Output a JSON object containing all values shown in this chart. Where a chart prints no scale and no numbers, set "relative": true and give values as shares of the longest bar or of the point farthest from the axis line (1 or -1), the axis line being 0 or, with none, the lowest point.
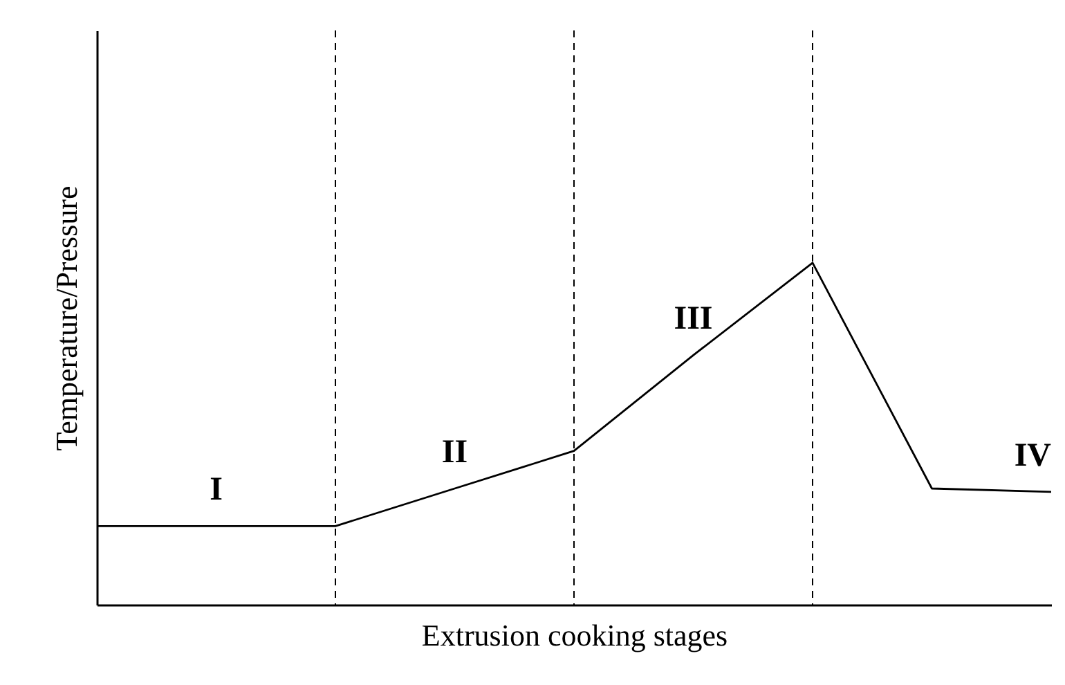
{
  "chart_data": {
    "type": "line",
    "xlabel": "Extrusion cooking stages",
    "ylabel": "Temperature/Pressure",
    "relative": true,
    "grid": "x",
    "marker": "none",
    "line_style": "solid",
    "categories": [
      null,
      null,
      null,
      null,
      null,
      null,
      null,
      null,
      null
    ],
    "series": [
      {
        "color": "#000000",
        "values": [
          0.23,
          0.23,
          0.23,
          0.34,
          0.45,
          0.73,
          1,
          0.34,
          0.33
        ]
      }
    ],
    "annotations": [
      "I",
      "II",
      "III",
      "IV"
    ]
  }
}
